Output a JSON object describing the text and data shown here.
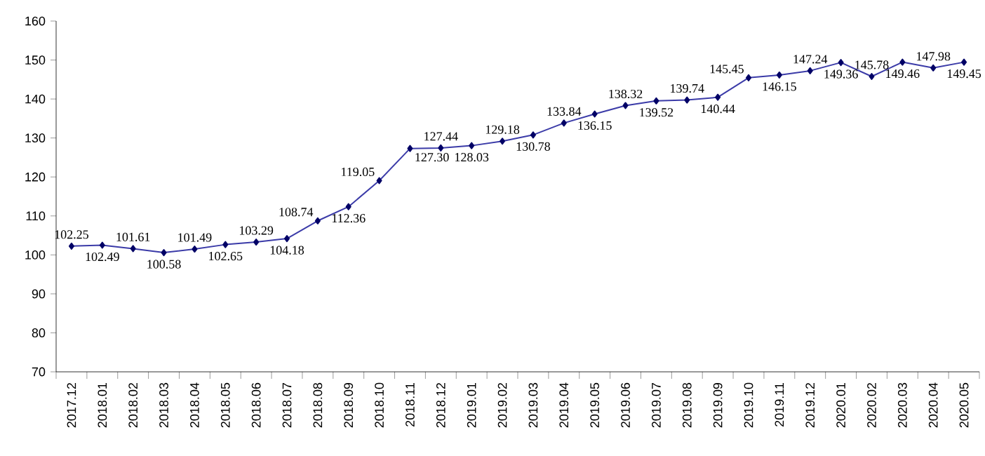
{
  "chart_data": {
    "type": "line",
    "categories": [
      "2017.12",
      "2018.01",
      "2018.02",
      "2018.03",
      "2018.04",
      "2018.05",
      "2018.06",
      "2018.07",
      "2018.08",
      "2018.09",
      "2018.10",
      "2018.11",
      "2018.12",
      "2019.01",
      "2019.02",
      "2019.03",
      "2019.04",
      "2019.05",
      "2019.06",
      "2019.07",
      "2019.08",
      "2019.09",
      "2019.10",
      "2019.11",
      "2019.12",
      "2020.01",
      "2020.02",
      "2020.03",
      "2020.04",
      "2020.05"
    ],
    "values": [
      102.25,
      102.49,
      101.61,
      100.58,
      101.49,
      102.65,
      103.29,
      104.18,
      108.74,
      112.36,
      119.05,
      127.3,
      127.44,
      128.03,
      129.18,
      130.78,
      133.84,
      136.15,
      138.32,
      139.52,
      139.74,
      140.44,
      145.45,
      146.15,
      147.24,
      149.36,
      145.78,
      149.46,
      147.98,
      149.45
    ],
    "value_labels": [
      "102.25",
      "102.49",
      "101.61",
      "100.58",
      "101.49",
      "102.65",
      "103.29",
      "104.18",
      "108.74",
      "112.36",
      "119.05",
      "127.30",
      "127.44",
      "128.03",
      "129.18",
      "130.78",
      "133.84",
      "136.15",
      "138.32",
      "139.52",
      "139.74",
      "140.44",
      "145.45",
      "146.15",
      "147.24",
      "149.36",
      "145.78",
      "149.46",
      "147.98",
      "149.45"
    ],
    "color": "#3b3ba8",
    "marker": "diamond",
    "line_style": "solid",
    "grid": false,
    "ylim": [
      70,
      160
    ],
    "yticks": [
      70,
      80,
      90,
      100,
      110,
      120,
      130,
      140,
      150,
      160
    ]
  }
}
